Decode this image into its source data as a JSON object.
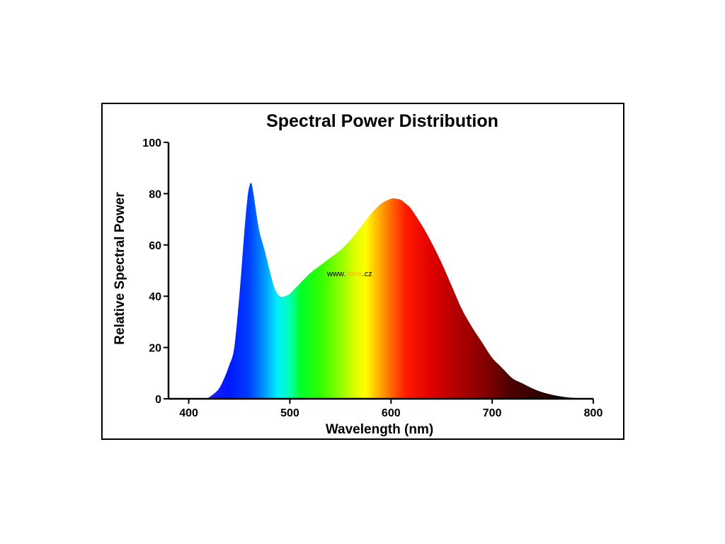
{
  "chart_data": {
    "type": "area",
    "title": "Spectral Power Distribution",
    "xlabel": "Wavelength (nm)",
    "ylabel": "Relative Spectral Power",
    "xlim": [
      380,
      800
    ],
    "ylim": [
      0,
      100
    ],
    "x_ticks": [
      400,
      500,
      600,
      700,
      800
    ],
    "y_ticks": [
      0,
      20,
      40,
      60,
      80,
      100
    ],
    "grid": false,
    "fill": "visible spectrum gradient",
    "series": [
      {
        "x": [
          418,
          425,
          430,
          435,
          440,
          445,
          450,
          455,
          458,
          460,
          462,
          464,
          467,
          470,
          475,
          480,
          485,
          490,
          495,
          500,
          505,
          510,
          520,
          530,
          540,
          550,
          560,
          570,
          580,
          590,
          600,
          605,
          610,
          615,
          620,
          630,
          640,
          650,
          660,
          670,
          680,
          690,
          700,
          710,
          720,
          730,
          740,
          750,
          760,
          770,
          780,
          790,
          795
        ],
        "y": [
          0,
          2,
          4,
          8,
          13,
          20,
          40,
          65,
          78,
          83,
          84,
          80,
          72,
          65,
          58,
          50,
          43,
          40,
          40,
          41,
          43,
          45,
          49,
          52,
          55,
          58,
          62,
          67,
          72,
          76,
          78,
          78,
          77.5,
          76,
          74,
          68,
          61,
          53,
          44,
          35,
          28,
          22,
          16,
          12,
          8,
          6,
          4,
          2.5,
          1.5,
          0.8,
          0.4,
          0.2,
          0
        ]
      }
    ]
  },
  "watermark": {
    "prefix": "www.",
    "middle": "lterix",
    "suffix": ".cz"
  }
}
